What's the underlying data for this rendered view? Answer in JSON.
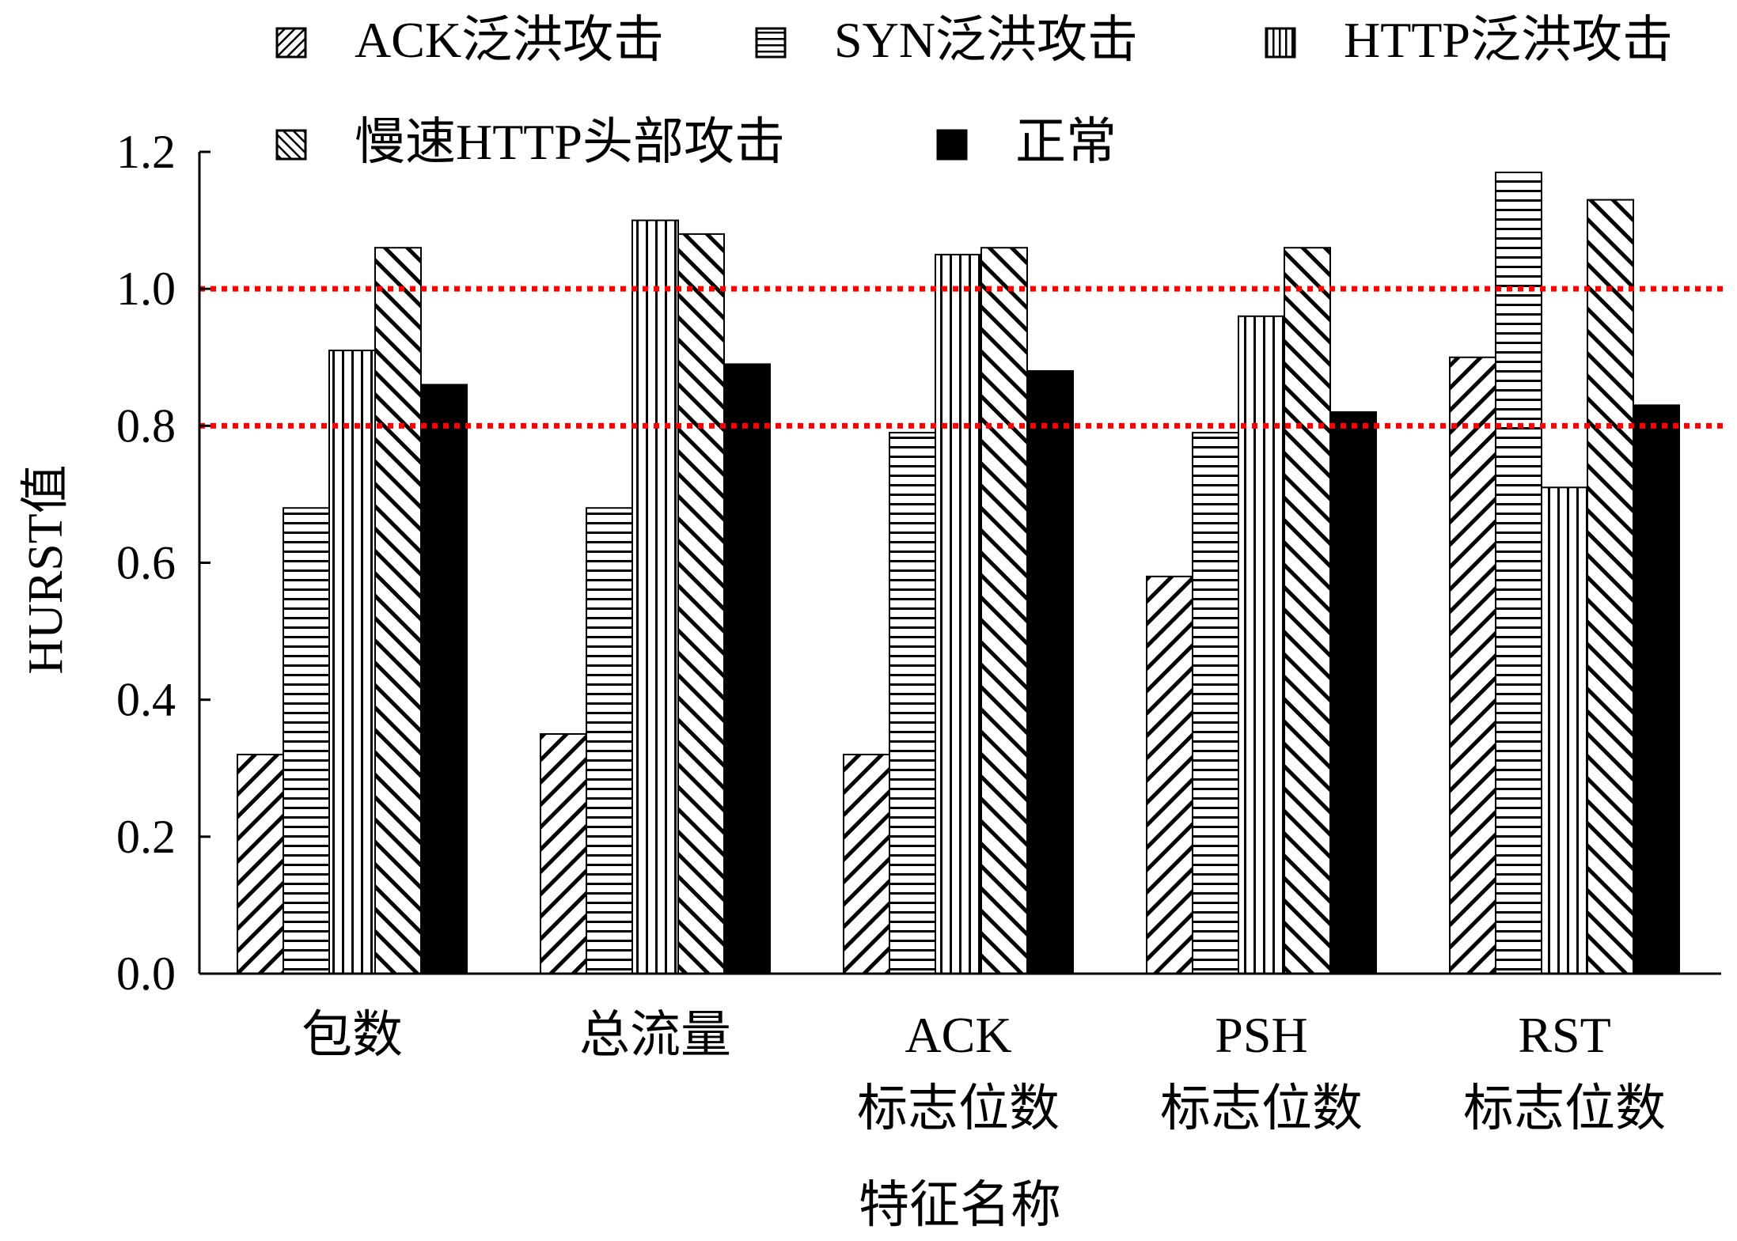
{
  "chart_data": {
    "type": "bar",
    "title": "",
    "xlabel": "特征名称",
    "ylabel": "HURST值",
    "ylim": [
      0.0,
      1.2
    ],
    "yticks": [
      "0.0",
      "0.2",
      "0.4",
      "0.6",
      "0.8",
      "1.0",
      "1.2"
    ],
    "categories": [
      [
        "包数"
      ],
      [
        "总流量"
      ],
      [
        "ACK",
        "标志位数"
      ],
      [
        "PSH",
        "标志位数"
      ],
      [
        "RST",
        "标志位数"
      ]
    ],
    "series": [
      {
        "name": "ACK泛洪攻击",
        "pattern": "back-diagonal",
        "values": [
          0.32,
          0.35,
          0.32,
          0.58,
          0.9
        ]
      },
      {
        "name": "SYN泛洪攻击",
        "pattern": "horizontal",
        "values": [
          0.68,
          0.68,
          0.79,
          0.79,
          1.17
        ]
      },
      {
        "name": "HTTP泛洪攻击",
        "pattern": "vertical",
        "values": [
          0.91,
          1.1,
          1.05,
          0.96,
          0.71
        ]
      },
      {
        "name": "慢速HTTP头部攻击",
        "pattern": "forward-diagonal",
        "values": [
          1.06,
          1.08,
          1.06,
          1.06,
          1.13
        ]
      },
      {
        "name": "正常",
        "pattern": "solid",
        "values": [
          0.86,
          0.89,
          0.88,
          0.82,
          0.83
        ]
      }
    ],
    "reference_lines": [
      {
        "y": 1.0,
        "color": "#ff0000",
        "style": "dotted"
      },
      {
        "y": 0.8,
        "color": "#ff0000",
        "style": "dotted"
      }
    ],
    "legend_position": "top",
    "grid": false
  }
}
